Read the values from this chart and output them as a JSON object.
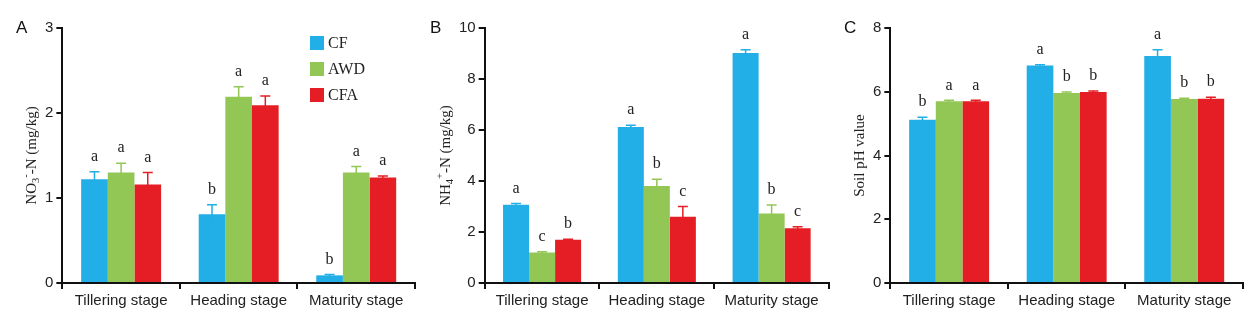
{
  "chart_data": [
    {
      "type": "bar",
      "title": "A",
      "ylabel": "NO$_{3}$$^{-}$-N (mg/kg)",
      "categories": [
        "Tillering stage",
        "Heading stage",
        "Maturity stage"
      ],
      "ylim": [
        0,
        3
      ],
      "yticks": [
        0,
        1,
        2,
        3
      ],
      "legend": "top right",
      "series": [
        {
          "name": "CF",
          "color": "#22aee6",
          "values": [
            1.22,
            0.81,
            0.09
          ],
          "errors": [
            0.09,
            0.11,
            0.01
          ],
          "value_labels": [
            "a",
            "b",
            "b"
          ]
        },
        {
          "name": "AWD",
          "color": "#92c655",
          "values": [
            1.3,
            2.19,
            1.3
          ],
          "errors": [
            0.11,
            0.12,
            0.07
          ],
          "value_labels": [
            "a",
            "a",
            "a"
          ]
        },
        {
          "name": "CFA",
          "color": "#e51e25",
          "values": [
            1.16,
            2.09,
            1.24
          ],
          "errors": [
            0.14,
            0.11,
            0.02
          ],
          "value_labels": [
            "a",
            "a",
            "a"
          ]
        }
      ]
    },
    {
      "type": "bar",
      "title": "B",
      "ylabel": "NH$_{4}$$^{+}$-N (mg/kg)",
      "categories": [
        "Tillering stage",
        "Heading stage",
        "Maturity stage"
      ],
      "ylim": [
        0,
        10
      ],
      "yticks": [
        0,
        2,
        4,
        6,
        8,
        10
      ],
      "series": [
        {
          "color": "#22aee6",
          "values": [
            3.07,
            6.12,
            9.02
          ],
          "errors": [
            0.05,
            0.07,
            0.13
          ],
          "value_labels": [
            "a",
            "a",
            "a"
          ]
        },
        {
          "color": "#92c655",
          "values": [
            1.2,
            3.8,
            2.73
          ],
          "errors": [
            0.03,
            0.27,
            0.33
          ],
          "value_labels": [
            "c",
            "b",
            "b"
          ]
        },
        {
          "color": "#e51e25",
          "values": [
            1.7,
            2.6,
            2.15
          ],
          "errors": [
            0.02,
            0.4,
            0.06
          ],
          "value_labels": [
            "b",
            "c",
            "c"
          ]
        }
      ]
    },
    {
      "type": "bar",
      "title": "C",
      "ylabel": "Soil pH value",
      "categories": [
        "Tillering stage",
        "Heading stage",
        "Maturity stage"
      ],
      "ylim": [
        0,
        8
      ],
      "yticks": [
        0,
        2,
        4,
        6,
        8
      ],
      "series": [
        {
          "color": "#22aee6",
          "values": [
            5.12,
            6.82,
            7.12
          ],
          "errors": [
            0.08,
            0.03,
            0.2
          ],
          "value_labels": [
            "b",
            "a",
            "a"
          ]
        },
        {
          "color": "#92c655",
          "values": [
            5.7,
            5.96,
            5.77
          ],
          "errors": [
            0.03,
            0.03,
            0.03
          ],
          "value_labels": [
            "a",
            "b",
            "b"
          ]
        },
        {
          "color": "#e51e25",
          "values": [
            5.7,
            5.99,
            5.78
          ],
          "errors": [
            0.03,
            0.03,
            0.05
          ],
          "value_labels": [
            "a",
            "b",
            "b"
          ]
        }
      ]
    }
  ]
}
